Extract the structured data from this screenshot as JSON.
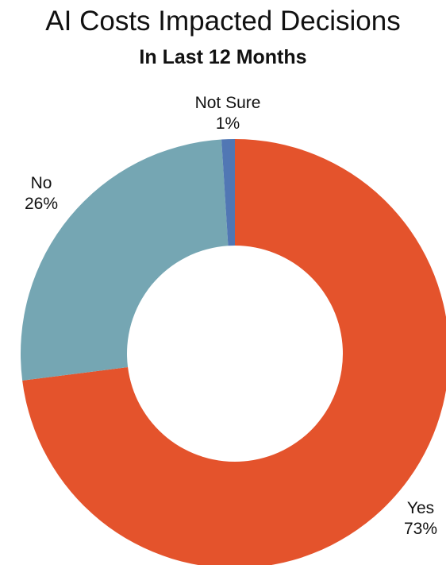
{
  "chart_data": {
    "type": "pie",
    "title": "AI Costs Impacted Decisions",
    "subtitle": "In Last 12 Months",
    "slices": [
      {
        "label": "Yes",
        "value": 73,
        "display": "73%",
        "color": "#E4532C"
      },
      {
        "label": "No",
        "value": 26,
        "display": "26%",
        "color": "#75A6B3"
      },
      {
        "label": "Not Sure",
        "value": 1,
        "display": "1%",
        "color": "#5177B4"
      }
    ],
    "donut": true
  }
}
